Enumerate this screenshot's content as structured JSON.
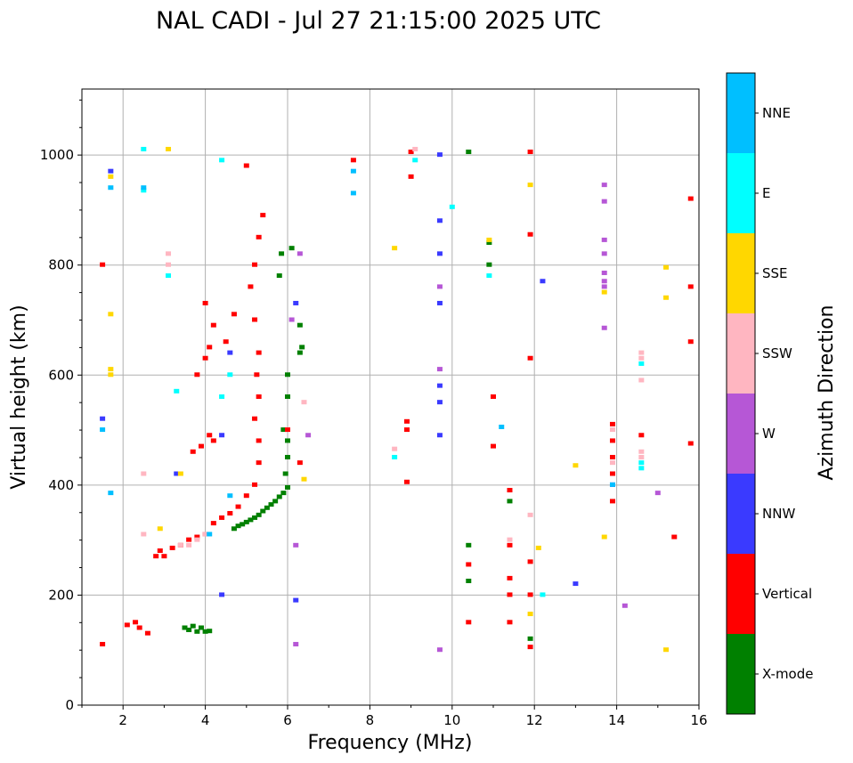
{
  "chart_data": {
    "type": "scatter",
    "title": "NAL CADI - Jul 27 21:15:00 2025 UTC",
    "xlabel": "Frequency (MHz)",
    "ylabel": "Virtual height (km)",
    "xlim": [
      1,
      16
    ],
    "ylim": [
      0,
      1120
    ],
    "xticks": [
      2,
      4,
      6,
      8,
      10,
      12,
      14,
      16
    ],
    "yticks": [
      0,
      200,
      400,
      600,
      800,
      1000
    ],
    "grid": true,
    "colorbar": {
      "label": "Azimuth Direction",
      "categories": [
        {
          "name": "X-mode",
          "color": "#008000"
        },
        {
          "name": "Vertical",
          "color": "#ff0000"
        },
        {
          "name": "NNW",
          "color": "#3a3aff"
        },
        {
          "name": "W",
          "color": "#b657d6"
        },
        {
          "name": "SSW",
          "color": "#ffb6c1"
        },
        {
          "name": "SSE",
          "color": "#ffd700"
        },
        {
          "name": "E",
          "color": "#00ffff"
        },
        {
          "name": "NNE",
          "color": "#00bfff"
        }
      ]
    },
    "series": [
      {
        "name": "X-mode",
        "points": [
          [
            3.5,
            140
          ],
          [
            3.6,
            136
          ],
          [
            3.7,
            143
          ],
          [
            3.8,
            133
          ],
          [
            3.9,
            140
          ],
          [
            4.0,
            133
          ],
          [
            4.1,
            134
          ],
          [
            4.7,
            320
          ],
          [
            4.8,
            325
          ],
          [
            4.9,
            328
          ],
          [
            5.0,
            332
          ],
          [
            5.1,
            336
          ],
          [
            5.2,
            340
          ],
          [
            5.3,
            345
          ],
          [
            5.4,
            352
          ],
          [
            5.5,
            358
          ],
          [
            5.6,
            364
          ],
          [
            5.7,
            370
          ],
          [
            5.8,
            378
          ],
          [
            5.9,
            385
          ],
          [
            6.0,
            395
          ],
          [
            5.95,
            420
          ],
          [
            6.0,
            450
          ],
          [
            6.0,
            480
          ],
          [
            5.9,
            500
          ],
          [
            6.0,
            560
          ],
          [
            6.0,
            600
          ],
          [
            6.3,
            640
          ],
          [
            6.35,
            650
          ],
          [
            5.8,
            780
          ],
          [
            5.85,
            820
          ],
          [
            6.1,
            830
          ],
          [
            6.3,
            690
          ],
          [
            10.4,
            1005
          ],
          [
            10.4,
            225
          ],
          [
            10.4,
            290
          ],
          [
            10.9,
            840
          ],
          [
            10.9,
            800
          ],
          [
            11.4,
            370
          ],
          [
            11.9,
            120
          ]
        ]
      },
      {
        "name": "Vertical",
        "points": [
          [
            1.5,
            110
          ],
          [
            2.1,
            145
          ],
          [
            2.3,
            150
          ],
          [
            2.4,
            140
          ],
          [
            2.6,
            130
          ],
          [
            2.8,
            270
          ],
          [
            2.9,
            280
          ],
          [
            3.0,
            270
          ],
          [
            3.2,
            285
          ],
          [
            3.4,
            290
          ],
          [
            3.6,
            300
          ],
          [
            3.8,
            305
          ],
          [
            4.0,
            310
          ],
          [
            4.2,
            330
          ],
          [
            4.4,
            340
          ],
          [
            4.6,
            348
          ],
          [
            4.8,
            360
          ],
          [
            5.0,
            380
          ],
          [
            5.2,
            400
          ],
          [
            5.3,
            440
          ],
          [
            5.3,
            480
          ],
          [
            5.2,
            520
          ],
          [
            5.3,
            560
          ],
          [
            5.25,
            600
          ],
          [
            5.3,
            640
          ],
          [
            5.2,
            700
          ],
          [
            5.1,
            760
          ],
          [
            5.2,
            800
          ],
          [
            5.3,
            850
          ],
          [
            5.4,
            890
          ],
          [
            5.0,
            980
          ],
          [
            3.7,
            460
          ],
          [
            3.9,
            470
          ],
          [
            4.1,
            490
          ],
          [
            4.2,
            480
          ],
          [
            3.8,
            600
          ],
          [
            4.0,
            630
          ],
          [
            4.1,
            650
          ],
          [
            4.2,
            690
          ],
          [
            4.5,
            660
          ],
          [
            4.7,
            710
          ],
          [
            4.0,
            730
          ],
          [
            1.5,
            800
          ],
          [
            6.0,
            500
          ],
          [
            6.3,
            440
          ],
          [
            7.6,
            990
          ],
          [
            9.0,
            1005
          ],
          [
            9.0,
            960
          ],
          [
            8.9,
            515
          ],
          [
            8.9,
            500
          ],
          [
            8.9,
            405
          ],
          [
            10.4,
            255
          ],
          [
            10.4,
            150
          ],
          [
            11.0,
            560
          ],
          [
            11.0,
            470
          ],
          [
            11.4,
            390
          ],
          [
            11.4,
            290
          ],
          [
            11.4,
            230
          ],
          [
            11.4,
            200
          ],
          [
            11.4,
            150
          ],
          [
            11.9,
            1005
          ],
          [
            11.9,
            855
          ],
          [
            11.9,
            630
          ],
          [
            11.9,
            260
          ],
          [
            11.9,
            200
          ],
          [
            11.9,
            105
          ],
          [
            13.9,
            510
          ],
          [
            13.9,
            480
          ],
          [
            13.9,
            450
          ],
          [
            13.9,
            420
          ],
          [
            13.9,
            370
          ],
          [
            14.6,
            490
          ],
          [
            15.4,
            305
          ],
          [
            15.8,
            920
          ],
          [
            15.8,
            760
          ],
          [
            15.8,
            660
          ],
          [
            15.8,
            475
          ]
        ]
      },
      {
        "name": "NNW",
        "points": [
          [
            1.5,
            520
          ],
          [
            1.7,
            970
          ],
          [
            3.3,
            420
          ],
          [
            4.4,
            200
          ],
          [
            4.4,
            490
          ],
          [
            4.6,
            640
          ],
          [
            6.2,
            730
          ],
          [
            6.2,
            190
          ],
          [
            9.7,
            1000
          ],
          [
            9.7,
            880
          ],
          [
            9.7,
            820
          ],
          [
            9.7,
            730
          ],
          [
            9.7,
            580
          ],
          [
            9.7,
            550
          ],
          [
            9.7,
            490
          ],
          [
            12.2,
            770
          ],
          [
            13.0,
            220
          ],
          [
            13.9,
            400
          ]
        ]
      },
      {
        "name": "W",
        "points": [
          [
            6.2,
            110
          ],
          [
            6.2,
            290
          ],
          [
            6.1,
            700
          ],
          [
            6.3,
            820
          ],
          [
            6.5,
            490
          ],
          [
            9.7,
            760
          ],
          [
            9.7,
            610
          ],
          [
            9.7,
            100
          ],
          [
            13.7,
            945
          ],
          [
            13.7,
            915
          ],
          [
            13.7,
            845
          ],
          [
            13.7,
            820
          ],
          [
            13.7,
            785
          ],
          [
            13.7,
            770
          ],
          [
            13.7,
            760
          ],
          [
            13.7,
            685
          ],
          [
            14.2,
            180
          ],
          [
            15.0,
            385
          ]
        ]
      },
      {
        "name": "SSW",
        "points": [
          [
            2.5,
            420
          ],
          [
            2.5,
            310
          ],
          [
            3.1,
            820
          ],
          [
            3.1,
            800
          ],
          [
            3.4,
            290
          ],
          [
            3.6,
            290
          ],
          [
            3.8,
            300
          ],
          [
            4.0,
            310
          ],
          [
            6.4,
            550
          ],
          [
            8.6,
            465
          ],
          [
            9.1,
            1010
          ],
          [
            11.4,
            300
          ],
          [
            13.9,
            500
          ],
          [
            13.9,
            440
          ],
          [
            14.6,
            640
          ],
          [
            14.6,
            630
          ],
          [
            14.6,
            590
          ],
          [
            14.6,
            460
          ],
          [
            14.6,
            450
          ],
          [
            11.9,
            345
          ]
        ]
      },
      {
        "name": "SSE",
        "points": [
          [
            1.7,
            960
          ],
          [
            1.7,
            610
          ],
          [
            1.7,
            600
          ],
          [
            1.7,
            710
          ],
          [
            2.9,
            320
          ],
          [
            3.1,
            1010
          ],
          [
            3.4,
            420
          ],
          [
            6.4,
            410
          ],
          [
            8.6,
            830
          ],
          [
            10.9,
            845
          ],
          [
            11.9,
            945
          ],
          [
            12.1,
            285
          ],
          [
            11.9,
            165
          ],
          [
            13.7,
            750
          ],
          [
            13.7,
            305
          ],
          [
            15.2,
            795
          ],
          [
            15.2,
            740
          ],
          [
            15.2,
            100
          ],
          [
            13.0,
            435
          ]
        ]
      },
      {
        "name": "E",
        "points": [
          [
            2.5,
            1010
          ],
          [
            2.5,
            935
          ],
          [
            3.1,
            780
          ],
          [
            3.3,
            570
          ],
          [
            4.4,
            990
          ],
          [
            4.4,
            560
          ],
          [
            4.6,
            600
          ],
          [
            8.6,
            450
          ],
          [
            9.1,
            990
          ],
          [
            10.0,
            905
          ],
          [
            10.9,
            780
          ],
          [
            12.2,
            200
          ],
          [
            14.6,
            620
          ],
          [
            14.6,
            440
          ],
          [
            14.6,
            430
          ]
        ]
      },
      {
        "name": "NNE",
        "points": [
          [
            1.5,
            500
          ],
          [
            1.7,
            940
          ],
          [
            1.7,
            385
          ],
          [
            2.5,
            940
          ],
          [
            4.1,
            310
          ],
          [
            4.6,
            380
          ],
          [
            7.6,
            970
          ],
          [
            7.6,
            930
          ],
          [
            11.2,
            505
          ],
          [
            13.9,
            400
          ]
        ]
      }
    ]
  }
}
